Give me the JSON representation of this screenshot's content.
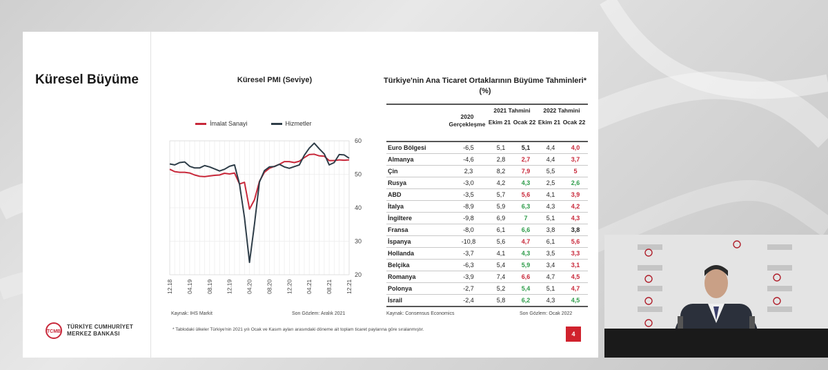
{
  "slide": {
    "section_title": "Küresel Büyüme",
    "page_number": "4",
    "footnote": "* Tablodaki ülkeler Türkiye'nin 2021 yılı Ocak ve Kasım ayları arasındaki döneme ait toplam ticaret paylarına göre sıralanmıştır.",
    "logo": {
      "line1": "TÜRKİYE CUMHURİYET",
      "line2": "MERKEZ BANKASI",
      "mark": "TCMB"
    }
  },
  "pmi_chart": {
    "title": "Küresel PMI (Seviye)",
    "source": "Kaynak: IHS Markit",
    "last_obs": "Son Gözlem: Aralık 2021"
  },
  "chart_data": {
    "type": "line",
    "title": "Küresel PMI (Seviye)",
    "ylim": [
      20,
      60
    ],
    "yticks": [
      20,
      30,
      40,
      50,
      60
    ],
    "xticks": [
      "12.18",
      "04.19",
      "08.19",
      "12.19",
      "04.20",
      "08.20",
      "12.20",
      "04.21",
      "08.21",
      "12.21"
    ],
    "x": [
      "12.18",
      "01.19",
      "02.19",
      "03.19",
      "04.19",
      "05.19",
      "06.19",
      "07.19",
      "08.19",
      "09.19",
      "10.19",
      "11.19",
      "12.19",
      "01.20",
      "02.20",
      "03.20",
      "04.20",
      "05.20",
      "06.20",
      "07.20",
      "08.20",
      "09.20",
      "10.20",
      "11.20",
      "12.20",
      "01.21",
      "02.21",
      "03.21",
      "04.21",
      "05.21",
      "06.21",
      "07.21",
      "08.21",
      "09.21",
      "10.21",
      "11.21",
      "12.21"
    ],
    "series": [
      {
        "name": "İmalat Sanayi",
        "color": "#c8283a",
        "values": [
          51.5,
          50.8,
          50.6,
          50.6,
          50.4,
          49.8,
          49.4,
          49.3,
          49.5,
          49.7,
          49.8,
          50.3,
          50.1,
          50.4,
          47.1,
          47.6,
          39.6,
          42.4,
          47.9,
          50.6,
          51.8,
          52.4,
          53.0,
          53.8,
          53.8,
          53.5,
          53.9,
          55.0,
          55.9,
          56.0,
          55.5,
          55.4,
          54.1,
          54.1,
          54.3,
          54.2,
          54.3
        ]
      },
      {
        "name": "Hizmetler",
        "color": "#2e3d48",
        "values": [
          53.1,
          52.8,
          53.5,
          53.7,
          52.4,
          51.9,
          51.9,
          52.6,
          52.2,
          51.6,
          51.0,
          51.5,
          52.4,
          52.8,
          47.1,
          37.1,
          23.7,
          35.1,
          47.7,
          51.1,
          52.2,
          52.3,
          53.0,
          52.2,
          51.8,
          52.3,
          52.8,
          55.7,
          57.8,
          59.3,
          57.6,
          56.1,
          52.8,
          53.5,
          55.9,
          55.8,
          54.8
        ]
      }
    ]
  },
  "growth_table": {
    "title": "Türkiye'nin Ana Ticaret Ortaklarının Büyüme Tahminleri* (%)",
    "header": {
      "col_2020": "2020 Gerçekleşme",
      "group_2021": "2021 Tahmini",
      "group_2022": "2022 Tahmini",
      "sub_ekim": "Ekim 21",
      "sub_ocak": "Ocak 22"
    },
    "colors": {
      "up": "#2e9c4a",
      "down": "#c8283a"
    },
    "rows": [
      {
        "country": "Euro Bölgesi",
        "v2020": "-6,5",
        "e21": "5,1",
        "o21": "5,1",
        "o21c": "",
        "e22": "4,4",
        "o22": "4,0",
        "o22c": "down"
      },
      {
        "country": "Almanya",
        "v2020": "-4,6",
        "e21": "2,8",
        "o21": "2,7",
        "o21c": "down",
        "e22": "4,4",
        "o22": "3,7",
        "o22c": "down"
      },
      {
        "country": "Çin",
        "v2020": "2,3",
        "e21": "8,2",
        "o21": "7,9",
        "o21c": "down",
        "e22": "5,5",
        "o22": "5",
        "o22c": "down"
      },
      {
        "country": "Rusya",
        "v2020": "-3,0",
        "e21": "4,2",
        "o21": "4,3",
        "o21c": "up",
        "e22": "2,5",
        "o22": "2,6",
        "o22c": "up"
      },
      {
        "country": "ABD",
        "v2020": "-3,5",
        "e21": "5,7",
        "o21": "5,6",
        "o21c": "down",
        "e22": "4,1",
        "o22": "3,9",
        "o22c": "down"
      },
      {
        "country": "İtalya",
        "v2020": "-8,9",
        "e21": "5,9",
        "o21": "6,3",
        "o21c": "up",
        "e22": "4,3",
        "o22": "4,2",
        "o22c": "down"
      },
      {
        "country": "İngiltere",
        "v2020": "-9,8",
        "e21": "6,9",
        "o21": "7",
        "o21c": "up",
        "e22": "5,1",
        "o22": "4,3",
        "o22c": "down"
      },
      {
        "country": "Fransa",
        "v2020": "-8,0",
        "e21": "6,1",
        "o21": "6,6",
        "o21c": "up",
        "e22": "3,8",
        "o22": "3,8",
        "o22c": ""
      },
      {
        "country": "İspanya",
        "v2020": "-10,8",
        "e21": "5,6",
        "o21": "4,7",
        "o21c": "down",
        "e22": "6,1",
        "o22": "5,6",
        "o22c": "down"
      },
      {
        "country": "Hollanda",
        "v2020": "-3,7",
        "e21": "4,1",
        "o21": "4,3",
        "o21c": "up",
        "e22": "3,5",
        "o22": "3,3",
        "o22c": "down"
      },
      {
        "country": "Belçika",
        "v2020": "-6,3",
        "e21": "5,4",
        "o21": "5,9",
        "o21c": "up",
        "e22": "3,4",
        "o22": "3,1",
        "o22c": "down"
      },
      {
        "country": "Romanya",
        "v2020": "-3,9",
        "e21": "7,4",
        "o21": "6,6",
        "o21c": "down",
        "e22": "4,7",
        "o22": "4,5",
        "o22c": "down"
      },
      {
        "country": "Polonya",
        "v2020": "-2,7",
        "e21": "5,2",
        "o21": "5,4",
        "o21c": "up",
        "e22": "5,1",
        "o22": "4,7",
        "o22c": "down"
      },
      {
        "country": "İsrail",
        "v2020": "-2,4",
        "e21": "5,8",
        "o21": "6,2",
        "o21c": "up",
        "e22": "4,3",
        "o22": "4,5",
        "o22c": "up"
      }
    ],
    "source": "Kaynak: Consensus Economics",
    "last_obs": "Son Gözlem: Ocak 2022"
  }
}
